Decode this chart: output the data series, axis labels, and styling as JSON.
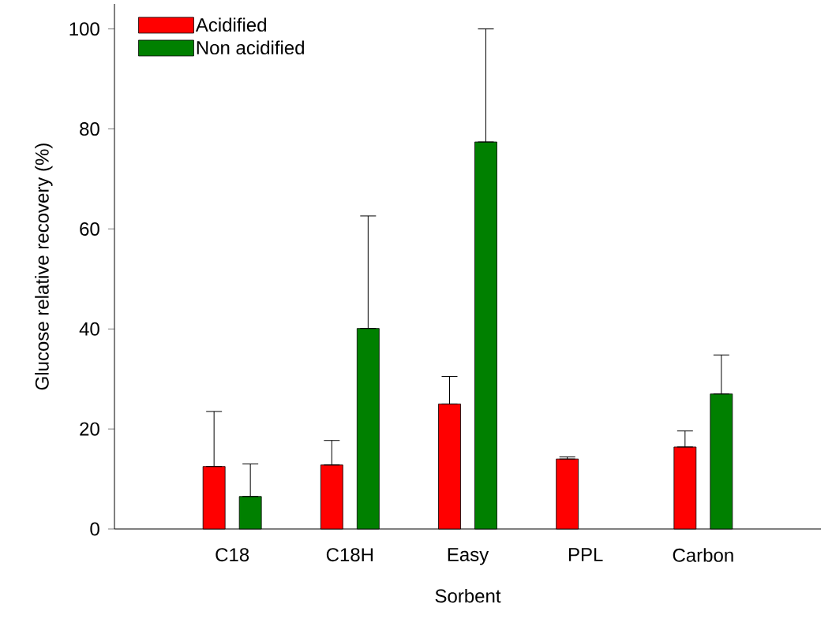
{
  "chart_data": {
    "type": "bar",
    "xlabel": "Sorbent",
    "ylabel": "Glucose relative recovery (%)",
    "categories": [
      "C18",
      "C18H",
      "Easy",
      "PPL",
      "Carbon"
    ],
    "series": [
      {
        "name": "Acidified",
        "color": "#ff0000",
        "values": [
          12.5,
          12.8,
          25.0,
          14.0,
          16.4
        ],
        "errors": [
          [
            12.5,
            23.5
          ],
          [
            12.8,
            17.7
          ],
          [
            25.0,
            30.5
          ],
          [
            14.0,
            14.4
          ],
          [
            16.4,
            19.6
          ]
        ]
      },
      {
        "name": "Non acidified",
        "color": "#008000",
        "values": [
          6.5,
          40.1,
          77.4,
          null,
          27.0
        ],
        "errors": [
          [
            6.5,
            13.0
          ],
          [
            40.1,
            62.6
          ],
          [
            77.4,
            100.0
          ],
          null,
          [
            27.0,
            34.8
          ]
        ]
      }
    ],
    "ylim": [
      0,
      105
    ],
    "yticks": [
      0,
      20,
      40,
      60,
      80,
      100
    ],
    "legend": "top left",
    "grid": false
  }
}
